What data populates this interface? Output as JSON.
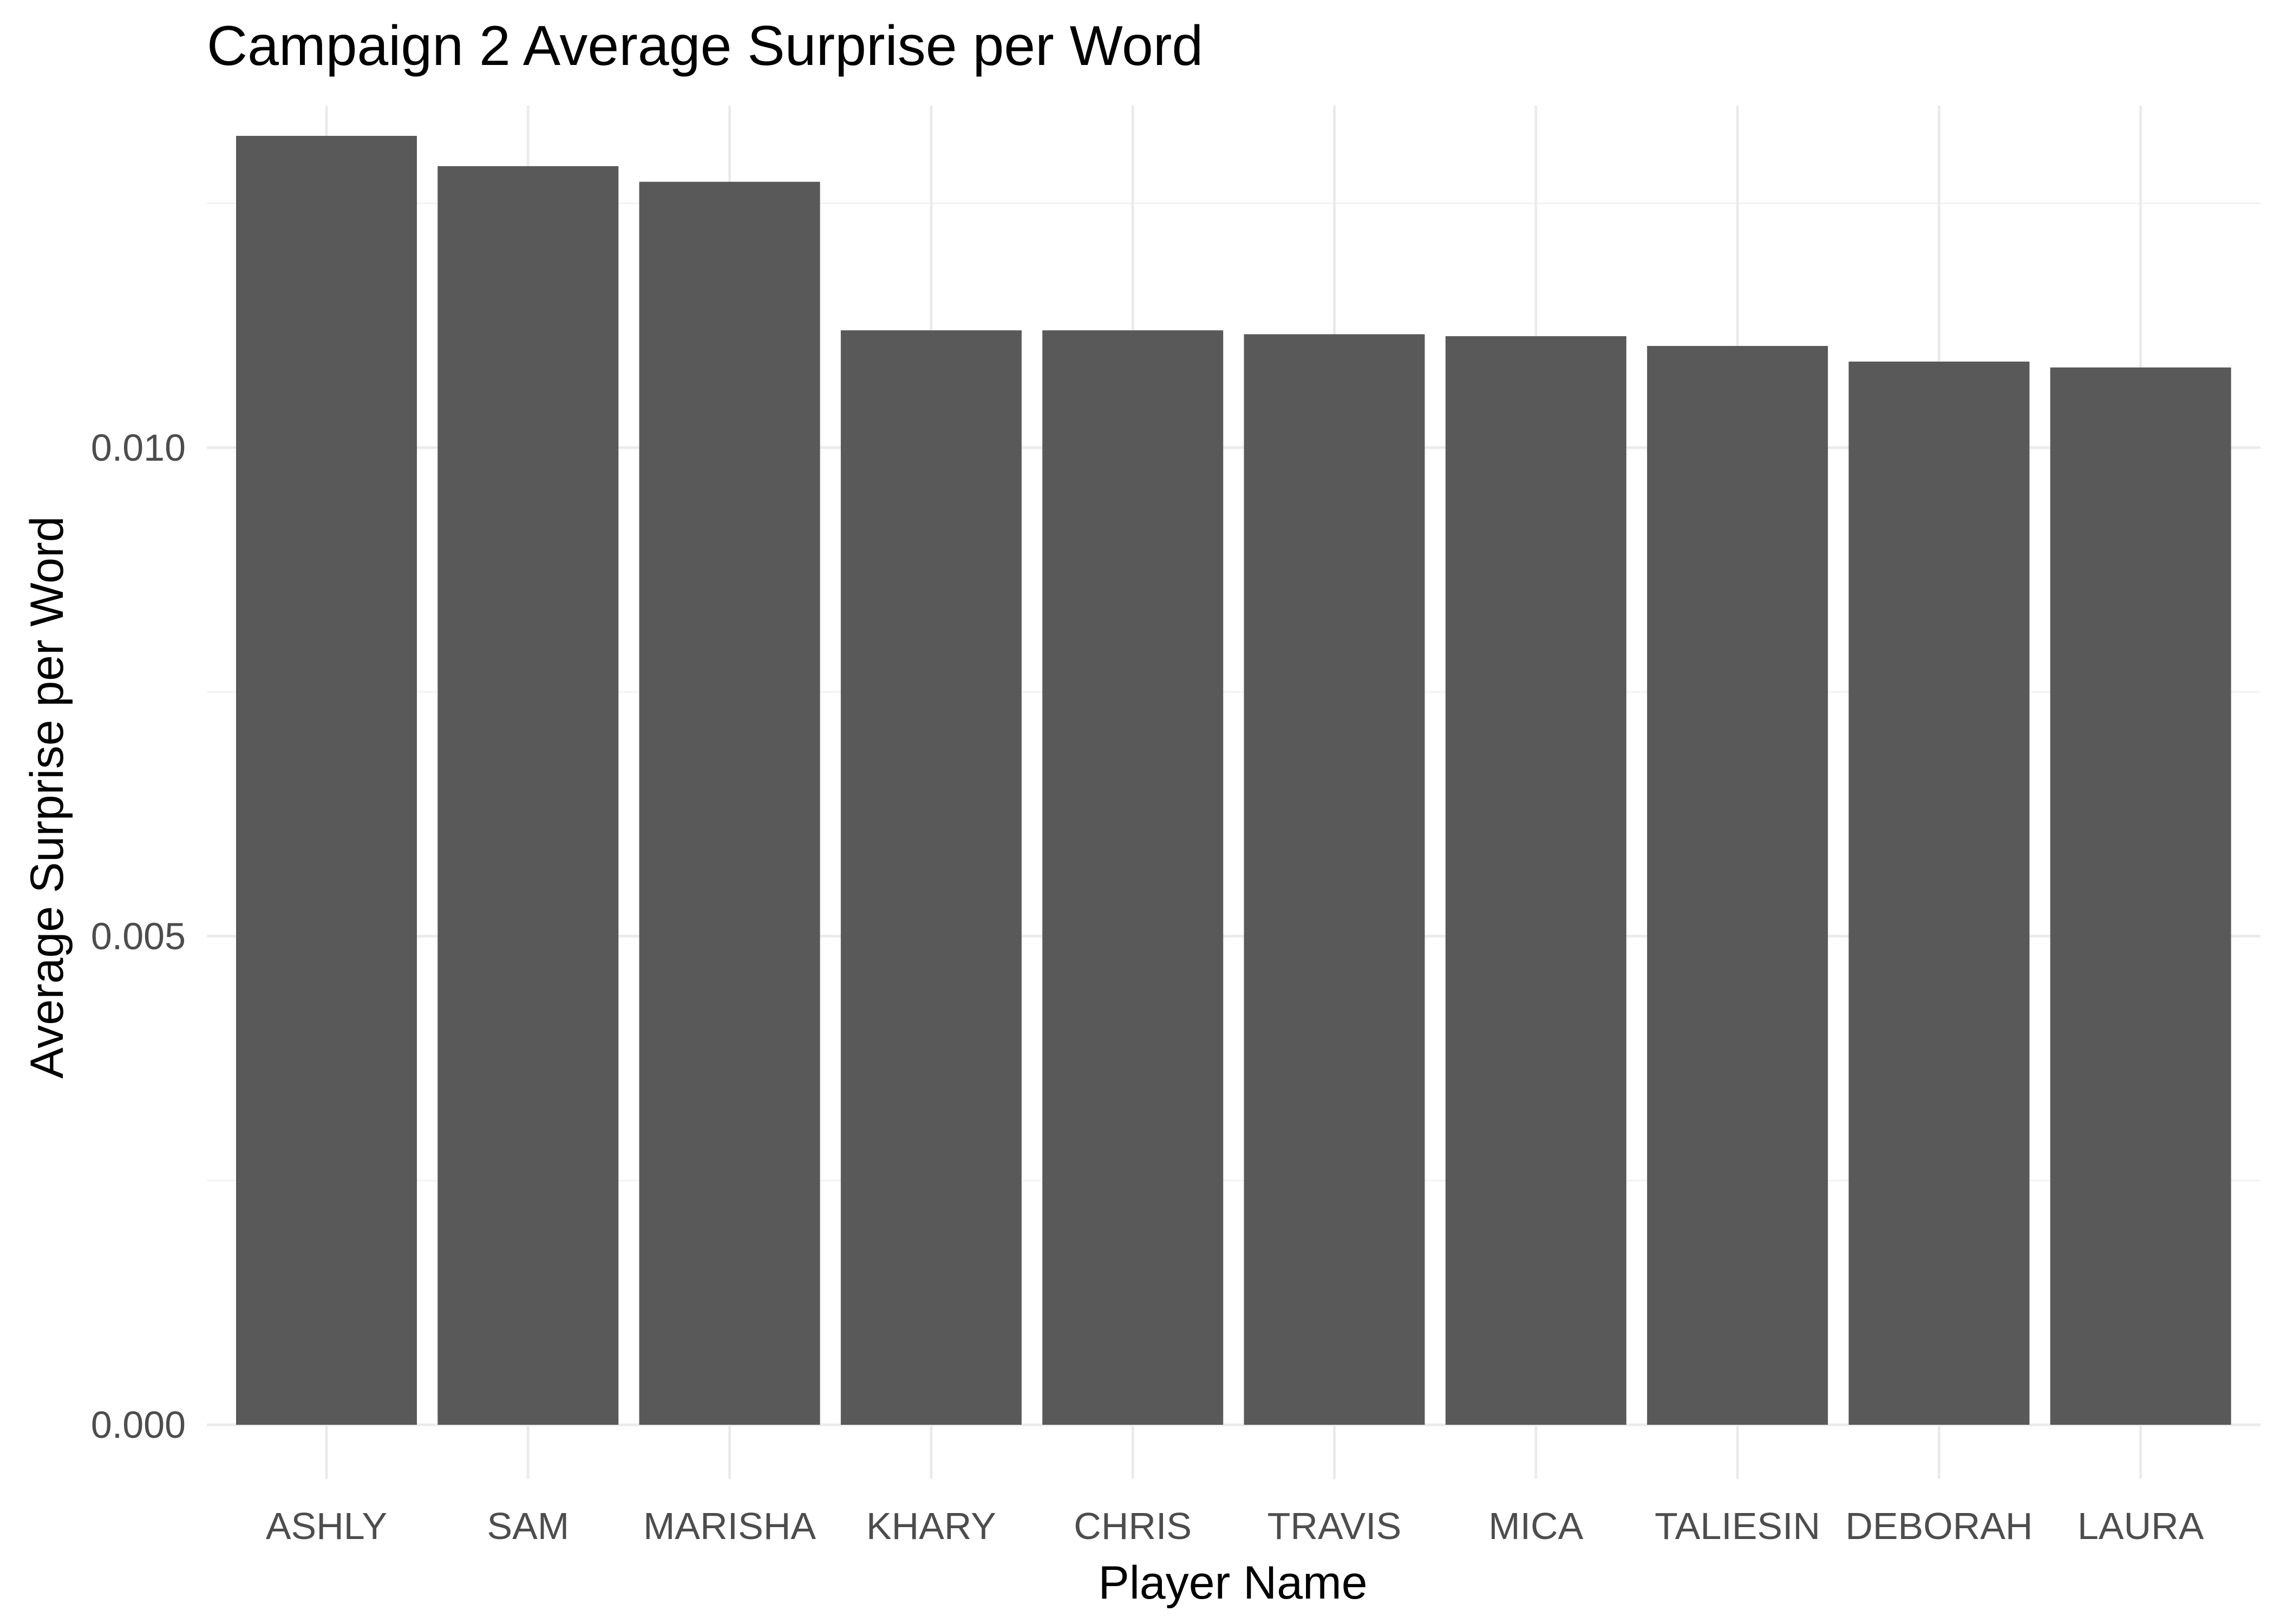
{
  "chart_data": {
    "type": "bar",
    "title": "Campaign 2 Average Surprise per Word",
    "xlabel": "Player Name",
    "ylabel": "Average Surprise per Word",
    "categories": [
      "ASHLY",
      "SAM",
      "MARISHA",
      "KHARY",
      "CHRIS",
      "TRAVIS",
      "MICA",
      "TALIESIN",
      "DEBORAH",
      "LAURA"
    ],
    "values": [
      0.01319,
      0.01288,
      0.01272,
      0.0112,
      0.0112,
      0.01116,
      0.01114,
      0.01104,
      0.01088,
      0.01082
    ],
    "ylim": [
      0,
      0.0135
    ],
    "y_ticks": [
      0.0,
      0.005,
      0.01
    ],
    "y_tick_labels": [
      "0.000",
      "0.005",
      "0.010"
    ],
    "y_minor_ticks": [
      0.0025,
      0.0075,
      0.0125
    ],
    "bar_color": "#595959",
    "grid": true,
    "legend": "none",
    "theme": "minimal"
  }
}
